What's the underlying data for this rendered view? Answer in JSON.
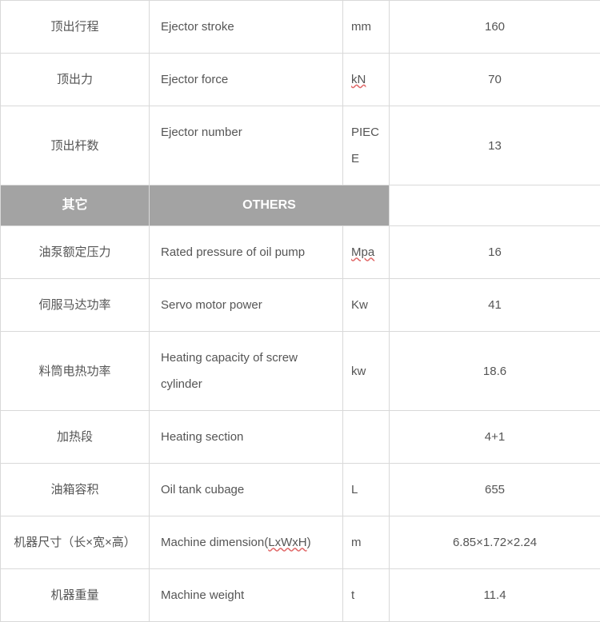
{
  "colors": {
    "border": "#d9d9d9",
    "text": "#555555",
    "section_bg": "#a3a3a3",
    "section_text": "#ffffff",
    "underline": "#e06666",
    "background": "#ffffff"
  },
  "columns": {
    "zh_width": 186,
    "en_width": 242,
    "unit_width": 58,
    "val_width": 264
  },
  "rows": [
    {
      "zh": "顶出行程",
      "en": "Ejector stroke",
      "unit": "mm",
      "unit_underline": false,
      "val": "160"
    },
    {
      "zh": "顶出力",
      "en": "Ejector force",
      "unit": "kN",
      "unit_underline": true,
      "val": "70"
    },
    {
      "zh": "顶出杆数",
      "en": "Ejector number",
      "unit": "PIECE",
      "unit_underline": false,
      "val": "13"
    }
  ],
  "section": {
    "zh": "其它",
    "en": "OTHERS"
  },
  "rows2": [
    {
      "zh": "油泵额定压力",
      "en": "Rated pressure of oil pump",
      "unit": "Mpa",
      "unit_underline": true,
      "val": "16"
    },
    {
      "zh": "伺服马达功率",
      "en": "Servo motor power",
      "unit": "Kw",
      "unit_underline": false,
      "val": "41"
    },
    {
      "zh": "料筒电热功率",
      "en": "Heating capacity of screw cylinder",
      "unit": "kw",
      "unit_underline": false,
      "val": "18.6"
    },
    {
      "zh": "加热段",
      "en": "Heating section",
      "unit": "",
      "unit_underline": false,
      "val": "4+1"
    },
    {
      "zh": "油箱容积",
      "en": "Oil tank cubage",
      "unit": "L",
      "unit_underline": false,
      "val": "655"
    },
    {
      "zh": "机器尺寸（长×宽×高）",
      "en": "Machine dimension(LxWxH)",
      "en_underline": true,
      "unit": "m",
      "unit_underline": false,
      "val": "6.85×1.72×2.24"
    },
    {
      "zh": "机器重量",
      "en": "Machine weight",
      "unit": "t",
      "unit_underline": false,
      "val": "11.4"
    }
  ]
}
